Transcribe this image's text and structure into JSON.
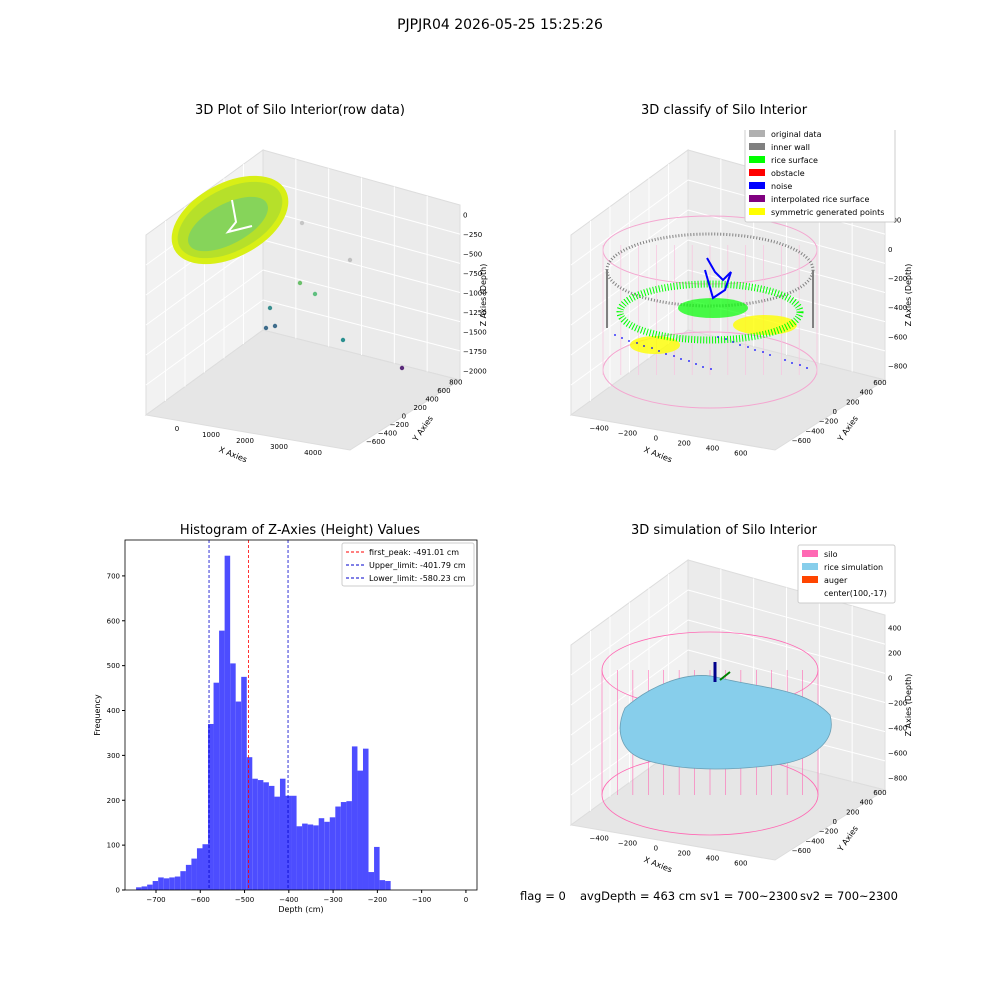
{
  "suptitle": "PJPJR04 2026-05-25 15:25:26",
  "panel_titles": {
    "tl": "3D Plot of Silo Interior(row data)",
    "tr": "3D classify of Silo Interior",
    "bl": "Histogram of Z-Axies (Height) Values",
    "br": "3D simulation of Silo Interior"
  },
  "footer": {
    "flag": "flag = 0",
    "avg": "avgDepth = 463 cm",
    "sv1": "sv1 = 700~2300",
    "sv2": "sv2 = 700~2300"
  },
  "colors": {
    "hist_bar": "#4d4dff",
    "peak_line": "#ff0000",
    "limit_line": "#0000cc",
    "silo": "#ff69b4",
    "rice": "#87ceeb",
    "auger": "#ff4500",
    "inner_wall": "#808080",
    "rice_surface": "#00ff00",
    "noise": "#0000ff",
    "symmetric": "#ffff00"
  },
  "chart_data": [
    {
      "type": "scatter",
      "title": "3D Plot of Silo Interior(row data)",
      "xlabel": "X Axies",
      "ylabel": "Y Axies",
      "zlabel": "Z Axies (Depth)",
      "x_ticks": [
        "0",
        "1000",
        "2000",
        "3000",
        "4000"
      ],
      "y_ticks": [
        "−600",
        "−400",
        "−200",
        "0",
        "200",
        "400",
        "600",
        "800"
      ],
      "z_ticks": [
        "0",
        "−250",
        "−500",
        "−750",
        "−1000",
        "−1250",
        "−1500",
        "−1750",
        "−2000"
      ]
    },
    {
      "type": "scatter",
      "title": "3D classify of Silo Interior",
      "xlabel": "X Axies",
      "ylabel": "Y Axies",
      "zlabel": "Z Axies (Depth)",
      "x_ticks": [
        "−400",
        "−200",
        "0",
        "200",
        "400",
        "600"
      ],
      "y_ticks": [
        "−600",
        "−400",
        "−200",
        "0",
        "200",
        "400",
        "600"
      ],
      "z_ticks": [
        "200",
        "0",
        "−200",
        "−400",
        "−600",
        "−800"
      ],
      "legend_position": "top-right",
      "legend": [
        {
          "label": "original data",
          "color": "#b0b0b0"
        },
        {
          "label": "inner wall",
          "color": "#808080"
        },
        {
          "label": "rice surface",
          "color": "#00ff00"
        },
        {
          "label": "obstacle",
          "color": "#ff0000"
        },
        {
          "label": "noise",
          "color": "#0000ff"
        },
        {
          "label": "interpolated rice surface",
          "color": "#800080"
        },
        {
          "label": "symmetric generated points",
          "color": "#ffff00"
        }
      ]
    },
    {
      "type": "bar",
      "title": "Histogram of Z-Axies (Height) Values",
      "xlabel": "Depth (cm)",
      "ylabel": "Frequency",
      "xlim": [
        -770,
        25
      ],
      "ylim": [
        0,
        780
      ],
      "x_ticks": [
        -700,
        -600,
        -500,
        -400,
        -300,
        -200,
        -100,
        0
      ],
      "y_ticks": [
        0,
        100,
        200,
        300,
        400,
        500,
        600,
        700
      ],
      "bin_start": -745,
      "bin_width": 12.5,
      "values": [
        6,
        8,
        12,
        20,
        28,
        26,
        28,
        30,
        42,
        56,
        70,
        93,
        102,
        370,
        462,
        578,
        745,
        505,
        420,
        475,
        296,
        248,
        245,
        240,
        232,
        208,
        248,
        210,
        210,
        142,
        148,
        146,
        144,
        160,
        152,
        162,
        186,
        196,
        198,
        320,
        266,
        315,
        40,
        96,
        22,
        20
      ],
      "lines": [
        {
          "label": "first_peak: -491.01 cm",
          "x": -491.01,
          "color": "#ff0000"
        },
        {
          "label": "Upper_limit: -401.79 cm",
          "x": -401.79,
          "color": "#0000cc"
        },
        {
          "label": "Lower_limit: -580.23 cm",
          "x": -580.23,
          "color": "#0000cc"
        }
      ],
      "legend_position": "top-right"
    },
    {
      "type": "scatter",
      "title": "3D simulation of Silo Interior",
      "xlabel": "X Axies",
      "ylabel": "Y Axies",
      "zlabel": "Z Axies (Depth)",
      "x_ticks": [
        "−400",
        "−200",
        "0",
        "200",
        "400",
        "600"
      ],
      "y_ticks": [
        "−600",
        "−400",
        "−200",
        "0",
        "200",
        "400",
        "600"
      ],
      "z_ticks": [
        "400",
        "200",
        "0",
        "−200",
        "−400",
        "−600",
        "−800"
      ],
      "legend_position": "top-right",
      "legend": [
        {
          "label": "silo",
          "color": "#ff69b4"
        },
        {
          "label": "rice simulation",
          "color": "#87ceeb"
        },
        {
          "label": "auger",
          "color": "#ff4500"
        },
        {
          "label": "center(100,-17)",
          "color": ""
        }
      ]
    }
  ]
}
